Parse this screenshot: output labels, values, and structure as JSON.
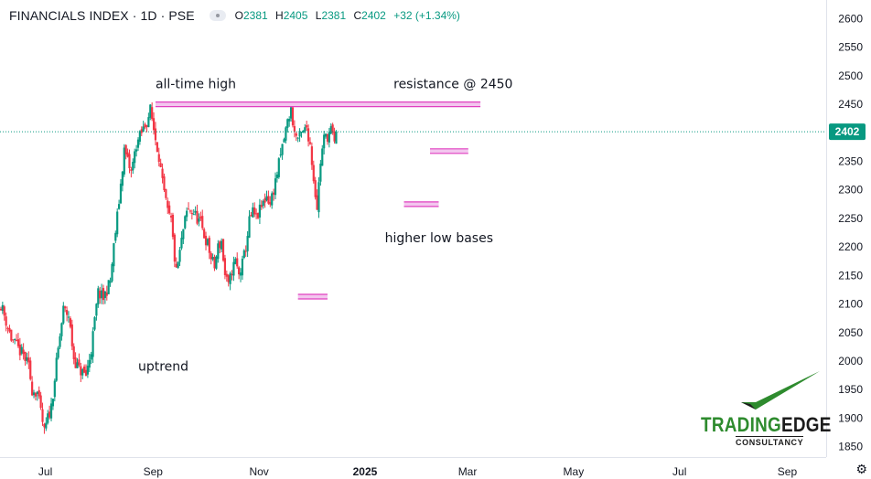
{
  "header": {
    "title": "FINANCIALS INDEX · 1D · PSE",
    "open_key": "O",
    "open": "2381",
    "high_key": "H",
    "high": "2405",
    "low_key": "L",
    "low": "2381",
    "close_key": "C",
    "close": "2402",
    "change": "+32 (+1.34%)"
  },
  "colors": {
    "up": "#089981",
    "down": "#f23645",
    "marker": "#e040c0",
    "price_line": "#089981",
    "price_tag": "#089981"
  },
  "last_price_tag": "2402",
  "logo": {
    "brand_a": "TRADING",
    "brand_b": "EDGE",
    "sub": "CONSULTANCY"
  },
  "settings_icon": "gear-icon",
  "chart_data": {
    "type": "candlestick",
    "ylim": [
      1835,
      2620
    ],
    "y_ticks": [
      1850,
      1900,
      1950,
      2000,
      2050,
      2100,
      2150,
      2200,
      2250,
      2300,
      2350,
      2400,
      2450,
      2500,
      2550,
      2600
    ],
    "x_ticks": [
      {
        "label": "Jul",
        "x": 25.6
      },
      {
        "label": "Sep",
        "x": 87.6
      },
      {
        "label": "Nov",
        "x": 148.6
      },
      {
        "label": "2025",
        "x": 209.6
      },
      {
        "label": "Mar",
        "x": 268.6
      },
      {
        "label": "May",
        "x": 329.6
      },
      {
        "label": "Jul",
        "x": 390.6
      },
      {
        "label": "Sep",
        "x": 452.6
      }
    ],
    "x_range": [
      -0.5,
      475
    ],
    "last_price": 2402,
    "anchors": [
      [
        0,
        2100
      ],
      [
        6,
        2040
      ],
      [
        9,
        2025
      ],
      [
        13,
        2010
      ],
      [
        16,
        1990
      ],
      [
        18,
        1950
      ],
      [
        21,
        1945
      ],
      [
        25,
        1875
      ],
      [
        27,
        1900
      ],
      [
        29,
        1920
      ],
      [
        33,
        2020
      ],
      [
        36,
        2090
      ],
      [
        39,
        2080
      ],
      [
        42,
        2005
      ],
      [
        45,
        1985
      ],
      [
        49,
        1975
      ],
      [
        52,
        2020
      ],
      [
        56,
        2120
      ],
      [
        59,
        2110
      ],
      [
        63,
        2140
      ],
      [
        65,
        2200
      ],
      [
        68,
        2280
      ],
      [
        71,
        2370
      ],
      [
        73,
        2350
      ],
      [
        75,
        2330
      ],
      [
        78,
        2380
      ],
      [
        81,
        2400
      ],
      [
        84,
        2420
      ],
      [
        86,
        2440
      ],
      [
        89,
        2390
      ],
      [
        91,
        2360
      ],
      [
        93,
        2310
      ],
      [
        96,
        2260
      ],
      [
        98,
        2245
      ],
      [
        100,
        2180
      ],
      [
        101,
        2155
      ],
      [
        103,
        2190
      ],
      [
        105,
        2230
      ],
      [
        107,
        2260
      ],
      [
        109,
        2265
      ],
      [
        111,
        2260
      ],
      [
        113,
        2250
      ],
      [
        115,
        2240
      ],
      [
        117,
        2220
      ],
      [
        119,
        2205
      ],
      [
        121,
        2180
      ],
      [
        123,
        2165
      ],
      [
        125,
        2200
      ],
      [
        127,
        2210
      ],
      [
        129,
        2150
      ],
      [
        131,
        2130
      ],
      [
        133,
        2160
      ],
      [
        135,
        2175
      ],
      [
        137,
        2150
      ],
      [
        139,
        2170
      ],
      [
        141,
        2200
      ],
      [
        143,
        2245
      ],
      [
        145,
        2260
      ],
      [
        147,
        2250
      ],
      [
        150,
        2270
      ],
      [
        153,
        2290
      ],
      [
        155,
        2275
      ],
      [
        158,
        2315
      ],
      [
        161,
        2360
      ],
      [
        163,
        2390
      ],
      [
        165,
        2420
      ],
      [
        167,
        2440
      ],
      [
        169,
        2400
      ],
      [
        171,
        2390
      ],
      [
        174,
        2400
      ],
      [
        176,
        2410
      ],
      [
        178,
        2380
      ],
      [
        180,
        2320
      ],
      [
        182,
        2270
      ],
      [
        184,
        2350
      ],
      [
        186,
        2390
      ],
      [
        188,
        2395
      ],
      [
        190,
        2405
      ],
      [
        192,
        2380
      ],
      [
        193,
        2402
      ]
    ],
    "annotations": [
      {
        "text": "all-time high",
        "x": 89,
        "y": 2478
      },
      {
        "text": "resistance @ 2450",
        "x": 226,
        "y": 2478
      },
      {
        "text": "higher low bases",
        "x": 221,
        "y": 2208
      },
      {
        "text": "uptrend",
        "x": 79,
        "y": 1983
      }
    ],
    "levels": [
      {
        "name": "resistance-line",
        "y": 2450,
        "x0": 89,
        "x1": 276
      },
      {
        "name": "support-line-1",
        "y": 2113,
        "x0": 171,
        "x1": 188
      },
      {
        "name": "support-line-2",
        "y": 2275,
        "x0": 232,
        "x1": 252
      },
      {
        "name": "support-line-3",
        "y": 2368,
        "x0": 247,
        "x1": 269
      }
    ]
  }
}
